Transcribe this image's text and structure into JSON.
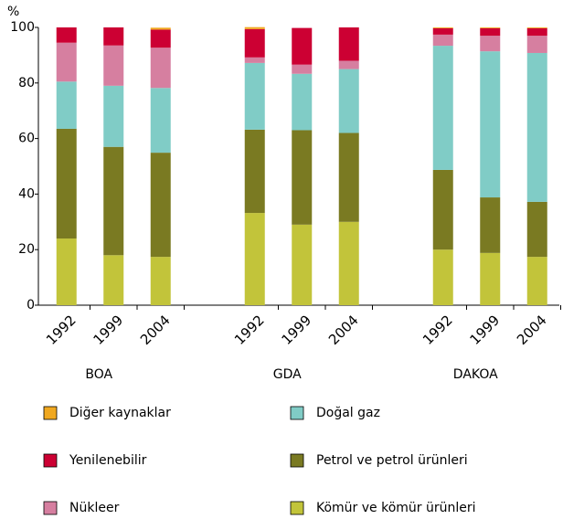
{
  "chart_data": {
    "type": "stacked_bar",
    "y_label": "%",
    "groups": [
      "BOA",
      "GDA",
      "DAKOA"
    ],
    "categories": [
      "1992",
      "1999",
      "2004",
      "1992",
      "1999",
      "2004",
      "1992",
      "1999",
      "2004"
    ],
    "ylim": [
      0,
      100
    ],
    "yticks": [
      0,
      20,
      40,
      60,
      80,
      100
    ],
    "grid": false,
    "series": [
      {
        "name": "Kömür ve kömür ürünleri",
        "color": "#c2c43a",
        "values": [
          24,
          18,
          17.4,
          33.2,
          29,
          30,
          20,
          18.8,
          17.4
        ]
      },
      {
        "name": "Petrol ve petrol ürünleri",
        "color": "#7a7a22",
        "values": [
          39.5,
          39,
          37.5,
          30,
          34,
          32,
          28.7,
          20,
          19.8
        ]
      },
      {
        "name": "Doğal gaz",
        "color": "#80ccc6",
        "values": [
          17,
          22,
          23.3,
          24,
          20.3,
          23,
          44.7,
          52.6,
          53.6
        ]
      },
      {
        "name": "Nükleer",
        "color": "#d67fa0",
        "values": [
          14,
          14.5,
          14.5,
          2,
          3.3,
          3,
          4,
          5.6,
          6.2
        ]
      },
      {
        "name": "Yenilenebilir",
        "color": "#cc0033",
        "values": [
          5.5,
          6.5,
          6.5,
          10.2,
          13.2,
          12,
          2.3,
          2.7,
          2.7
        ]
      },
      {
        "name": "Diğer kaynaklar",
        "color": "#f0a820",
        "values": [
          0,
          0,
          0.7,
          0.7,
          0,
          0,
          0.3,
          0.3,
          0.3
        ]
      }
    ]
  }
}
